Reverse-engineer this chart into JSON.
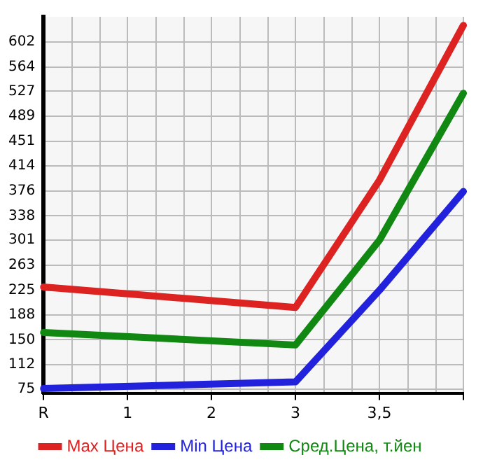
{
  "chart_data": {
    "type": "line",
    "categories": [
      "R",
      "1",
      "2",
      "3",
      "3,5",
      null
    ],
    "series": [
      {
        "name": "Max Цена",
        "color": "#dd2222",
        "values": [
          230,
          null,
          null,
          199,
          392,
          627
        ]
      },
      {
        "name": "Min Цена",
        "color": "#2222dd",
        "values": [
          76,
          null,
          null,
          86,
          225,
          375
        ]
      },
      {
        "name": "Сред.Цена, т.йен",
        "color": "#118811",
        "values": [
          161,
          null,
          null,
          142,
          301,
          524
        ]
      }
    ],
    "ylim": [
      69,
      640
    ],
    "yticks": [
      75,
      112,
      150,
      188,
      225,
      263,
      301,
      338,
      376,
      414,
      451,
      489,
      527,
      564,
      602
    ],
    "grid": true,
    "legend": "bottom",
    "marker": "none",
    "line_style": "solid"
  }
}
